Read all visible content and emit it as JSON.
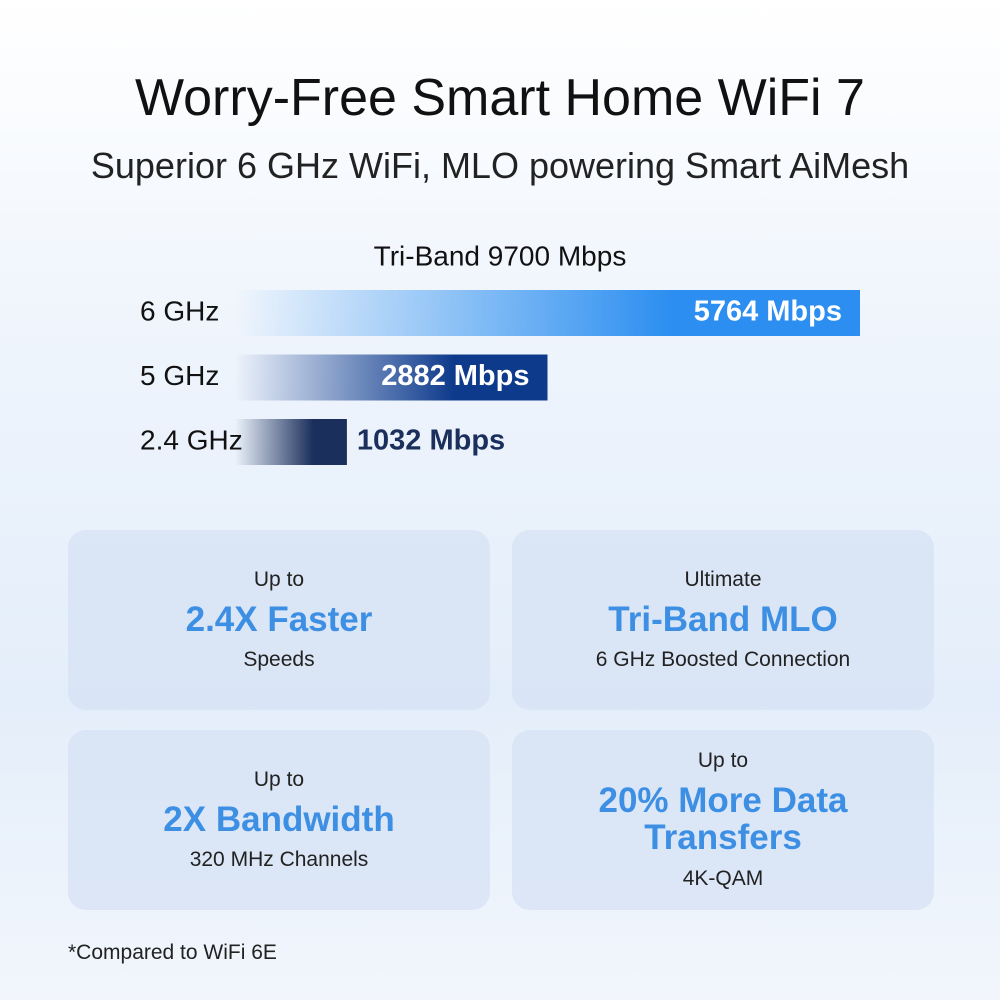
{
  "header": {
    "title": "Worry-Free Smart Home WiFi 7",
    "subtitle": "Superior 6 GHz WiFi, MLO powering Smart AiMesh"
  },
  "chart_data": {
    "type": "bar",
    "orientation": "horizontal",
    "title": "Tri-Band 9700 Mbps",
    "categories": [
      "6 GHz",
      "5 GHz",
      "2.4 GHz"
    ],
    "values": [
      5764,
      2882,
      1032
    ],
    "value_labels": [
      "5764 Mbps",
      "2882 Mbps",
      "1032 Mbps"
    ],
    "colors": [
      "#2b8ef0",
      "#0e3a8c",
      "#1b2f5c"
    ]
  },
  "cards": [
    {
      "top": "Up to",
      "headline": "2.4X Faster",
      "bottom": "Speeds"
    },
    {
      "top": "Ultimate",
      "headline": "Tri-Band MLO",
      "bottom": "6 GHz Boosted Connection"
    },
    {
      "top": "Up to",
      "headline": "2X Bandwidth",
      "bottom": "320 MHz Channels"
    },
    {
      "top": "Up to",
      "headline": "20% More Data Transfers",
      "bottom": "4K-QAM"
    }
  ],
  "footnote": "*Compared to WiFi 6E"
}
